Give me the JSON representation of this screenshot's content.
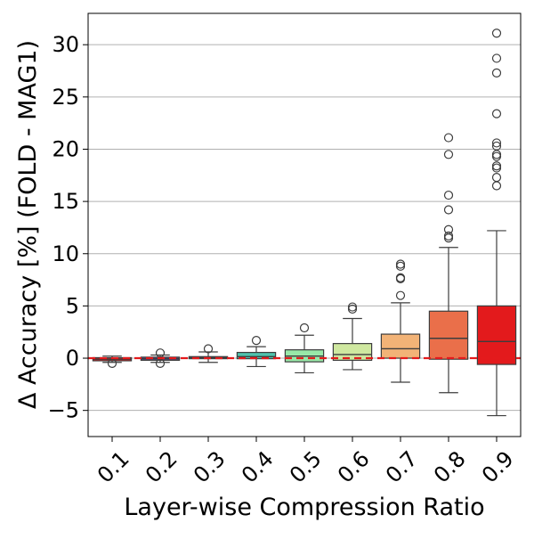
{
  "chart_data": {
    "type": "box",
    "title": "",
    "xlabel": "Layer-wise Compression Ratio",
    "ylabel": "Δ Accuracy [%] (FOLD - MAG1)",
    "ylim": [
      -7.5,
      33
    ],
    "yticks": [
      -5,
      0,
      5,
      10,
      15,
      20,
      25,
      30
    ],
    "ytick_labels": [
      "−5",
      "0",
      "5",
      "10",
      "15",
      "20",
      "25",
      "30"
    ],
    "grid": "horizontal",
    "reference_line": {
      "y": 0,
      "style": "dashed",
      "color": "#e41a1c"
    },
    "categories": [
      "0.1",
      "0.2",
      "0.3",
      "0.4",
      "0.5",
      "0.6",
      "0.7",
      "0.8",
      "0.9"
    ],
    "boxes": [
      {
        "category": "0.1",
        "whisker_low": -0.4,
        "q1": -0.25,
        "median": -0.1,
        "q3": 0.05,
        "whisker_high": 0.2,
        "outliers": [
          -0.5
        ],
        "color": "#e41a1c"
      },
      {
        "category": "0.2",
        "whisker_low": -0.4,
        "q1": -0.2,
        "median": -0.05,
        "q3": 0.1,
        "whisker_high": 0.3,
        "outliers": [
          0.5,
          -0.5
        ],
        "color": "#5e4fa2"
      },
      {
        "category": "0.3",
        "whisker_low": -0.4,
        "q1": -0.05,
        "median": 0.05,
        "q3": 0.15,
        "whisker_high": 0.6,
        "outliers": [
          0.9
        ],
        "color": "#3f7fb8"
      },
      {
        "category": "0.4",
        "whisker_low": -0.8,
        "q1": -0.05,
        "median": 0.15,
        "q3": 0.55,
        "whisker_high": 1.1,
        "outliers": [
          1.7
        ],
        "color": "#4fc3ad"
      },
      {
        "category": "0.5",
        "whisker_low": -1.4,
        "q1": -0.35,
        "median": 0.2,
        "q3": 0.8,
        "whisker_high": 2.2,
        "outliers": [
          2.9
        ],
        "color": "#98e8a8"
      },
      {
        "category": "0.6",
        "whisker_low": -1.1,
        "q1": -0.2,
        "median": 0.35,
        "q3": 1.4,
        "whisker_high": 3.8,
        "outliers": [
          4.7,
          4.9
        ],
        "color": "#cfe8a0"
      },
      {
        "category": "0.7",
        "whisker_low": -2.3,
        "q1": 0.0,
        "median": 0.9,
        "q3": 2.3,
        "whisker_high": 5.3,
        "outliers": [
          6.0,
          7.6,
          7.7,
          8.8,
          9.0
        ],
        "color": "#f2b377"
      },
      {
        "category": "0.8",
        "whisker_low": -3.3,
        "q1": -0.1,
        "median": 1.9,
        "q3": 4.5,
        "whisker_high": 10.6,
        "outliers": [
          11.5,
          11.7,
          12.3,
          14.2,
          15.6,
          19.5,
          21.1
        ],
        "color": "#ea6f4a"
      },
      {
        "category": "0.9",
        "whisker_low": -5.5,
        "q1": -0.6,
        "median": 1.6,
        "q3": 5.0,
        "whisker_high": 12.2,
        "outliers": [
          16.5,
          17.3,
          18.2,
          18.4,
          19.3,
          19.5,
          20.3,
          20.6,
          23.4,
          27.3,
          28.7,
          31.1
        ],
        "color": "#e31a1c"
      }
    ]
  }
}
